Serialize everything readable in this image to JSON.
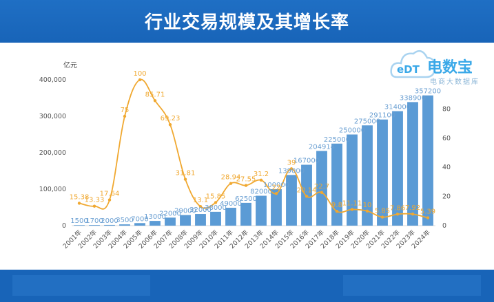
{
  "header": {
    "title": "行业交易规模及其增长率"
  },
  "watermark": {
    "name": "电数宝",
    "sub": "电商大数据库",
    "logo_text": "eDT"
  },
  "colors": {
    "bar": "#5b9bd5",
    "line": "#f0a830",
    "header": "#1864b8",
    "watermark": "#39a8e8"
  },
  "chart_data": {
    "type": "bar",
    "categories": [
      "2001年",
      "2002年",
      "2003年",
      "2004年",
      "2005年",
      "2006年",
      "2007年",
      "2008年",
      "2009年",
      "2010年",
      "2011年",
      "2012年",
      "2013年",
      "2014年",
      "2015年",
      "2016年",
      "2017年",
      "2018年",
      "2019年",
      "2020年",
      "2021年",
      "2022年",
      "2023年",
      "2024年"
    ],
    "ylabel": "亿元",
    "ylim": [
      0,
      400000
    ],
    "yticks": [
      "0",
      "100,000",
      "200,000",
      "300,000",
      "400,000"
    ],
    "y2lim": [
      0,
      100
    ],
    "y2ticks": [
      "0",
      "20",
      "40",
      "60",
      "80"
    ],
    "series": [
      {
        "type": "bar",
        "axis": "left",
        "values": [
          1500,
          1700,
          2000,
          3500,
          7000,
          13000,
          22000,
          29000,
          32000,
          38000,
          49000,
          62500,
          82000,
          100000,
          139000,
          167000,
          204914,
          225000,
          250000,
          275000,
          291100,
          314000,
          338900,
          357200
        ],
        "labels": [
          "1500",
          "1700",
          "2000",
          "3500",
          "7000",
          "13000",
          "22000",
          "29000",
          "32000",
          "38000",
          "49000",
          "62500",
          "82000",
          "100000",
          "139000",
          "167000",
          "204914",
          "225000",
          "250000",
          "275000",
          "291100",
          "314000",
          "338900",
          "357200"
        ]
      },
      {
        "type": "line",
        "axis": "right",
        "values": [
          15.38,
          13.33,
          17.64,
          75,
          100,
          85.71,
          69.23,
          31.81,
          13.1,
          15.85,
          28.94,
          27.55,
          31.2,
          22,
          39,
          20.14,
          22.7,
          9.8,
          11.11,
          10,
          5.85,
          7.86,
          7.92,
          5.39
        ],
        "labels": [
          "15.38",
          "13.33",
          "17.64",
          "75",
          "100",
          "85.71",
          "69.23",
          "31.81",
          "13.1",
          "15.85",
          "28.94",
          "27.55",
          "31.2",
          "22",
          "39",
          "20.14",
          "22.7",
          "9.8",
          "11.11",
          "10",
          "5.85",
          "7.86",
          "7.92",
          "5.39"
        ]
      }
    ]
  }
}
